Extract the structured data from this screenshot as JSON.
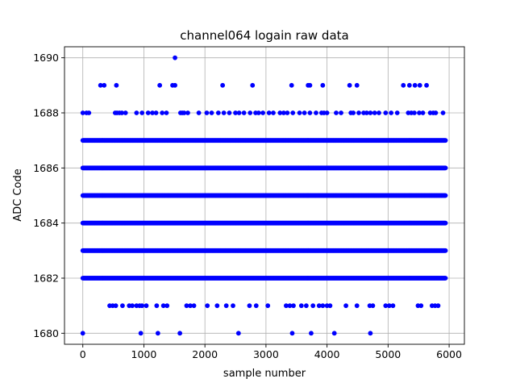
{
  "chart_data": {
    "type": "scatter",
    "title": "channel064 logain raw data",
    "xlabel": "sample number",
    "ylabel": "ADC Code",
    "xlim": [
      -300,
      6250
    ],
    "ylim": [
      1679.6,
      1690.4
    ],
    "xticks": [
      0,
      1000,
      2000,
      3000,
      4000,
      5000,
      6000
    ],
    "yticks": [
      1680,
      1682,
      1684,
      1686,
      1688,
      1690
    ],
    "grid": true,
    "marker_color": "#0000ff",
    "x_range": [
      0,
      5940
    ],
    "dense_levels": [
      1682,
      1683,
      1684,
      1685,
      1686,
      1687
    ],
    "series": [
      {
        "level": 1680,
        "x": [
          0,
          950,
          1230,
          1590,
          2550,
          3430,
          3740,
          4120,
          4710
        ]
      },
      {
        "level": 1681,
        "x": [
          440,
          490,
          540,
          650,
          760,
          810,
          880,
          930,
          970,
          1040,
          1210,
          1320,
          1380,
          1700,
          1760,
          1820,
          2040,
          2200,
          2350,
          2460,
          2730,
          2840,
          3030,
          3330,
          3390,
          3450,
          3580,
          3660,
          3770,
          3870,
          3930,
          4000,
          4050,
          4310,
          4490,
          4700,
          4750,
          4960,
          5020,
          5080,
          5490,
          5540,
          5720,
          5770,
          5820
        ]
      },
      {
        "level": 1688,
        "x": [
          0,
          60,
          100,
          530,
          560,
          600,
          640,
          700,
          880,
          970,
          1070,
          1140,
          1200,
          1300,
          1370,
          1600,
          1630,
          1660,
          1720,
          1900,
          2030,
          2110,
          2220,
          2310,
          2400,
          2500,
          2560,
          2640,
          2740,
          2830,
          2880,
          2950,
          3050,
          3120,
          3230,
          3290,
          3350,
          3440,
          3550,
          3630,
          3720,
          3820,
          3910,
          3950,
          4000,
          4150,
          4230,
          4390,
          4430,
          4520,
          4600,
          4650,
          4710,
          4780,
          4850,
          4960,
          5050,
          5150,
          5330,
          5380,
          5430,
          5510,
          5570,
          5690,
          5740,
          5780,
          5900
        ]
      },
      {
        "level": 1689,
        "x": [
          290,
          350,
          550,
          1260,
          1470,
          1510,
          2290,
          2780,
          3420,
          3690,
          3720,
          3930,
          4370,
          4490,
          5250,
          5350,
          5440,
          5520,
          5630
        ]
      },
      {
        "level": 1690,
        "x": [
          1510
        ]
      }
    ]
  }
}
